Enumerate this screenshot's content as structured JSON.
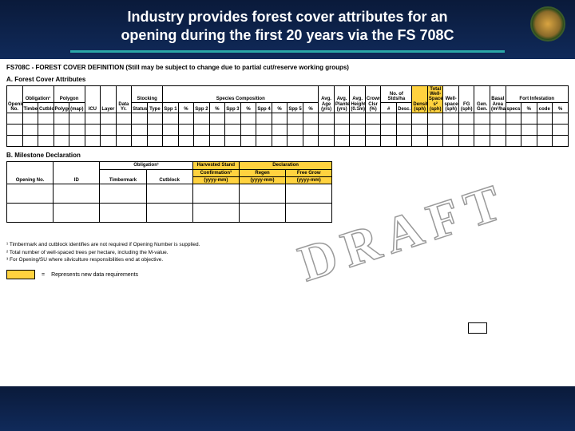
{
  "header": {
    "title_line1": "Industry provides forest cover attributes for an",
    "title_line2": "opening during the first 20 years via the FS 708C"
  },
  "colors": {
    "header_bg_top": "#0a1a3a",
    "header_bg_bottom": "#102a5a",
    "rule": "#2aa8a8",
    "highlight": "#ffd23f",
    "watermark_stroke": "#9a9a9a",
    "page_bg": "#ffffff"
  },
  "form": {
    "title": "FS708C - FOREST COVER DEFINITION (Still may be subject to change due to partial cut/reserve working groups)",
    "sectionA": {
      "label": "A. Forest Cover Attributes",
      "group_headers": [
        "Opening No.",
        "Obligation¹",
        "Polygon",
        "Area",
        "Stocking",
        "Species Composition",
        "Avg. Age",
        "Avg. Planted",
        "Avg. Height",
        "Crown Clsr",
        "No. of Stds/ha",
        "Density",
        "Total Well-Spaced s²",
        "Well-spaced",
        "FG",
        "Gen.",
        "Basal Area",
        "Fort Infestation"
      ],
      "columns": [
        "Opening No.",
        "Timbermark",
        "Cutblock",
        "Polygon",
        "(map)",
        "ICU",
        "Layer",
        "Data Yr.",
        "Status",
        "Type",
        "Spp 1",
        "%",
        "Spp 2",
        "%",
        "Spp 3",
        "%",
        "Spp 4",
        "%",
        "Spp 5",
        "%",
        "(yrs)",
        "(yrs)",
        "(0.1m)",
        "(%)",
        "#",
        "Desc.",
        "(sph)",
        "(sph)",
        "(sph)",
        "(sph)",
        "(sph)",
        "Gen.",
        "(m²/ha)",
        "specs",
        "%",
        "code",
        "%"
      ],
      "highlight_cols": [
        26
      ]
    },
    "sectionB": {
      "label": "B. Milestone Declaration",
      "group1": "Obligation¹",
      "group2": "Harvested Stand",
      "group3": "Declaration",
      "sub2": "Confirmation³",
      "sub3a": "Regen",
      "sub3b": "Free Grow",
      "columns": [
        "Opening No.",
        "ID",
        "Timbermark",
        "Cutblock",
        "(yyyy-mm)",
        "(yyyy-mm)",
        "(yyyy-mm)"
      ]
    },
    "footnotes": [
      "¹ Timbermark and cutblock identifies are not required if Opening Number is supplied.",
      "² Total number of well-spaced trees per hectare, including the M-value.",
      "³ For Opening/SU where silviculture responsibilities end at objective."
    ],
    "legend": {
      "text": "Represents new data requirements"
    }
  },
  "watermark": "DRAFT"
}
